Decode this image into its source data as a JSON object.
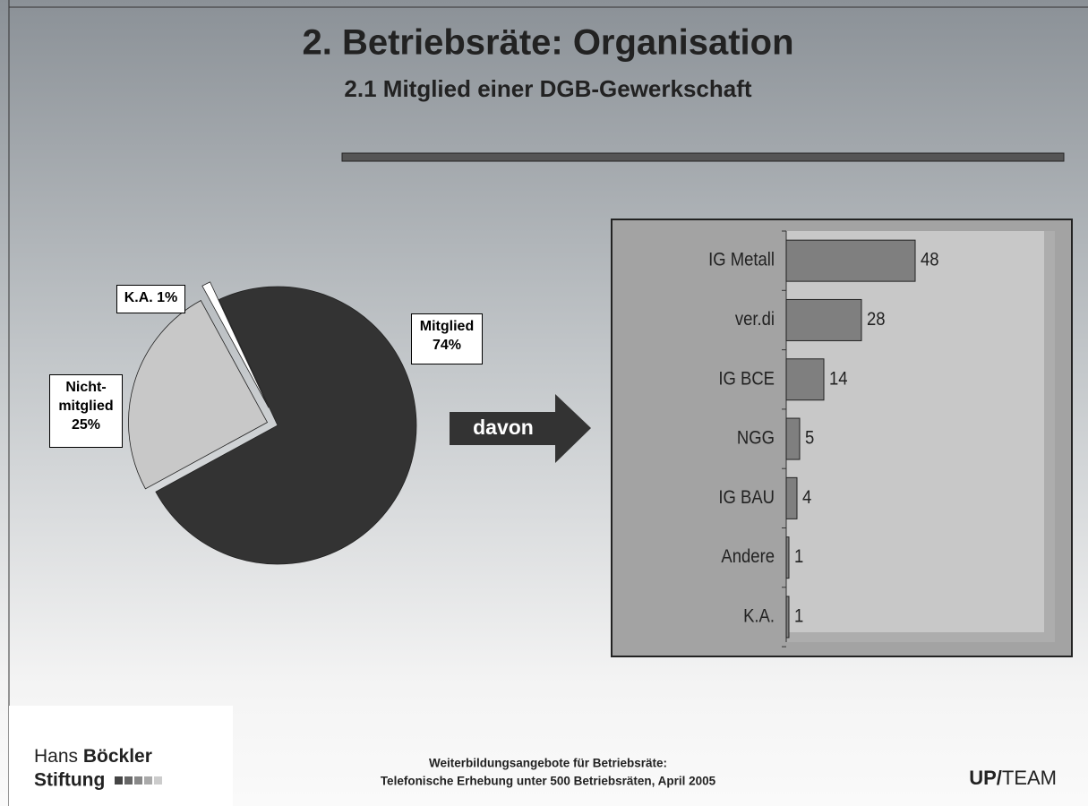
{
  "title": "2. Betriebsräte: Organisation",
  "subtitle": "2.1  Mitglied einer DGB-Gewerkschaft",
  "arrow_label": "davon",
  "chart_data": [
    {
      "type": "pie",
      "categories": [
        "Mitglied",
        "Nicht-mitglied",
        "K.A."
      ],
      "values": [
        74,
        25,
        1
      ],
      "value_labels": [
        "74%",
        "25%",
        "1%"
      ],
      "colors": [
        "#333333",
        "#c8c8c8",
        "#ffffff"
      ]
    },
    {
      "type": "hbar",
      "categories": [
        "IG Metall",
        "ver.di",
        "IG BCE",
        "NGG",
        "IG BAU",
        "Andere",
        "K.A."
      ],
      "values": [
        48,
        28,
        14,
        5,
        4,
        1,
        1
      ],
      "color": "#7f7f7f"
    }
  ],
  "footer": {
    "logo_light": "Hans",
    "logo_bold": "Böckler",
    "logo_second": "Stiftung",
    "source": [
      "Weiterbildungsangebote für Betriebsräte:",
      "Telefonische Erhebung unter 500 Betriebsräten, April 2005"
    ],
    "brand_bold": "UP/",
    "brand_light": "TEAM"
  }
}
